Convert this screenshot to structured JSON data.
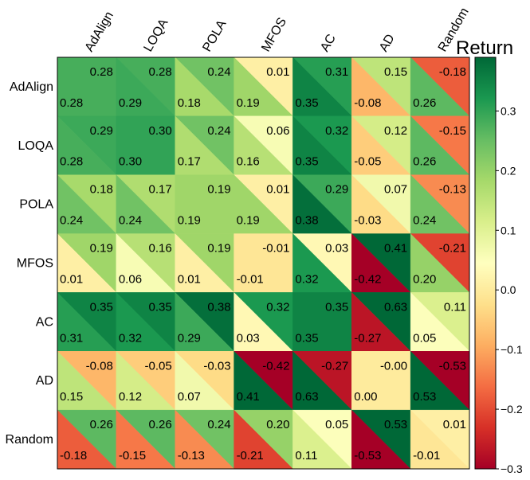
{
  "chart_data": {
    "type": "heatmap",
    "layout": "split-cell (upper-right triangle = row player return, lower-left triangle = column player return)",
    "rows": [
      "AdAlign",
      "LOQA",
      "POLA",
      "MFOS",
      "AC",
      "AD",
      "Random"
    ],
    "cols": [
      "AdAlign",
      "LOQA",
      "POLA",
      "MFOS",
      "AC",
      "AD",
      "Random"
    ],
    "upper": [
      [
        "0.28",
        "0.28",
        "0.24",
        "0.01",
        "0.31",
        "0.15",
        "-0.18"
      ],
      [
        "0.29",
        "0.30",
        "0.24",
        "0.06",
        "0.32",
        "0.12",
        "-0.15"
      ],
      [
        "0.18",
        "0.17",
        "0.19",
        "0.01",
        "0.29",
        "0.07",
        "-0.13"
      ],
      [
        "0.19",
        "0.16",
        "0.19",
        "-0.01",
        "0.03",
        "0.41",
        "-0.21"
      ],
      [
        "0.35",
        "0.35",
        "0.38",
        "0.32",
        "0.35",
        "0.63",
        "0.11"
      ],
      [
        "-0.08",
        "-0.05",
        "-0.03",
        "-0.42",
        "-0.27",
        "-0.00",
        "-0.53"
      ],
      [
        "0.26",
        "0.26",
        "0.24",
        "0.20",
        "0.05",
        "0.53",
        "0.01"
      ]
    ],
    "lower": [
      [
        "0.28",
        "0.29",
        "0.18",
        "0.19",
        "0.35",
        "-0.08",
        "0.26"
      ],
      [
        "0.28",
        "0.30",
        "0.17",
        "0.16",
        "0.35",
        "-0.05",
        "0.26"
      ],
      [
        "0.24",
        "0.24",
        "0.19",
        "0.19",
        "0.38",
        "-0.03",
        "0.24"
      ],
      [
        "0.01",
        "0.06",
        "0.01",
        "-0.01",
        "0.32",
        "-0.42",
        "0.20"
      ],
      [
        "0.31",
        "0.32",
        "0.29",
        "0.03",
        "0.35",
        "-0.27",
        "0.05"
      ],
      [
        "0.15",
        "0.12",
        "0.07",
        "0.41",
        "0.63",
        "0.00",
        "0.53"
      ],
      [
        "-0.18",
        "-0.15",
        "-0.13",
        "-0.21",
        "0.11",
        "-0.53",
        "-0.01"
      ]
    ],
    "colorbar": {
      "title": "Return",
      "colormap": "RdYlGn",
      "vmin": -0.3,
      "vmax": 0.39,
      "ticks": [
        "0.3",
        "0.2",
        "0.1",
        "0.0",
        "−0.1",
        "−0.2",
        "−0.3"
      ],
      "tick_values": [
        0.3,
        0.2,
        0.1,
        0.0,
        -0.1,
        -0.2,
        -0.3
      ]
    }
  }
}
